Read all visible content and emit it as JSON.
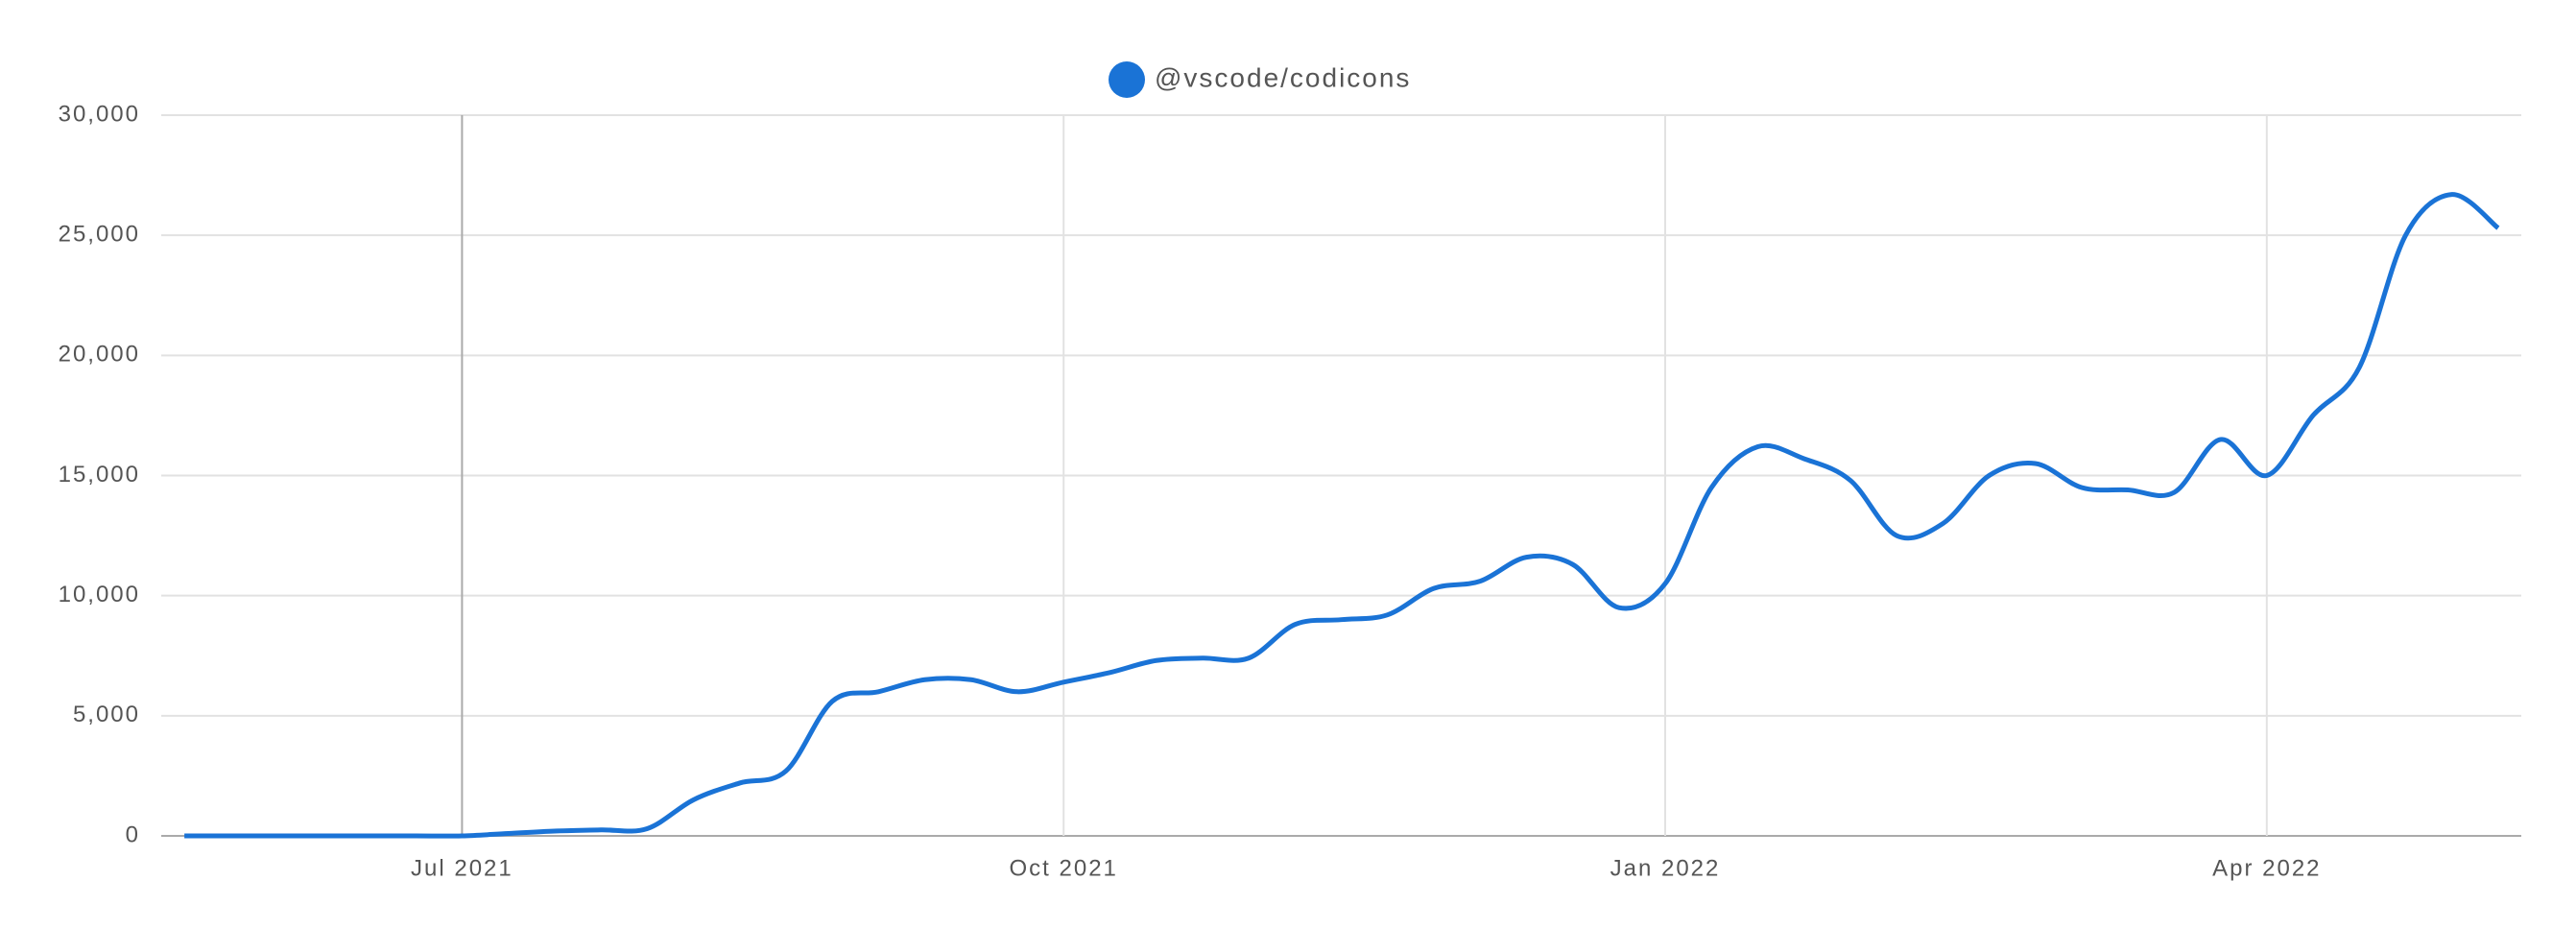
{
  "chart_data": {
    "type": "line",
    "categories": [
      null,
      null,
      null,
      null,
      null,
      null,
      "Jul 2021",
      null,
      null,
      null,
      null,
      null,
      null,
      null,
      null,
      null,
      null,
      null,
      null,
      "Oct 2021",
      null,
      null,
      null,
      null,
      null,
      null,
      null,
      null,
      null,
      null,
      null,
      null,
      "Jan 2022",
      null,
      null,
      null,
      null,
      null,
      null,
      null,
      null,
      null,
      null,
      null,
      null,
      "Apr 2022",
      null,
      null,
      null,
      null,
      null
    ],
    "series": [
      {
        "name": "@vscode/codicons",
        "color": "#1a73d6",
        "values": [
          0,
          0,
          0,
          0,
          0,
          0,
          0,
          100,
          200,
          250,
          300,
          1500,
          2200,
          2700,
          5600,
          6000,
          6500,
          6500,
          6000,
          6400,
          6800,
          7300,
          7400,
          7400,
          8800,
          9000,
          9200,
          10300,
          10600,
          11600,
          11300,
          9500,
          10500,
          14500,
          16200,
          15700,
          14800,
          12500,
          13000,
          15000,
          15500,
          14500,
          14400,
          14300,
          16500,
          15000,
          17500,
          19500,
          25000,
          26700,
          25300
        ]
      }
    ],
    "ylim": [
      0,
      30000
    ],
    "yticks": [
      0,
      {
        "value": 5000,
        "label": "5,000"
      },
      {
        "value": 10000,
        "label": "10,000"
      },
      {
        "value": 15000,
        "label": "15,000"
      },
      {
        "value": 20000,
        "label": "20,000"
      },
      {
        "value": 25000,
        "label": "25,000"
      },
      {
        "value": 30000,
        "label": "30,000"
      }
    ],
    "grid": true
  }
}
